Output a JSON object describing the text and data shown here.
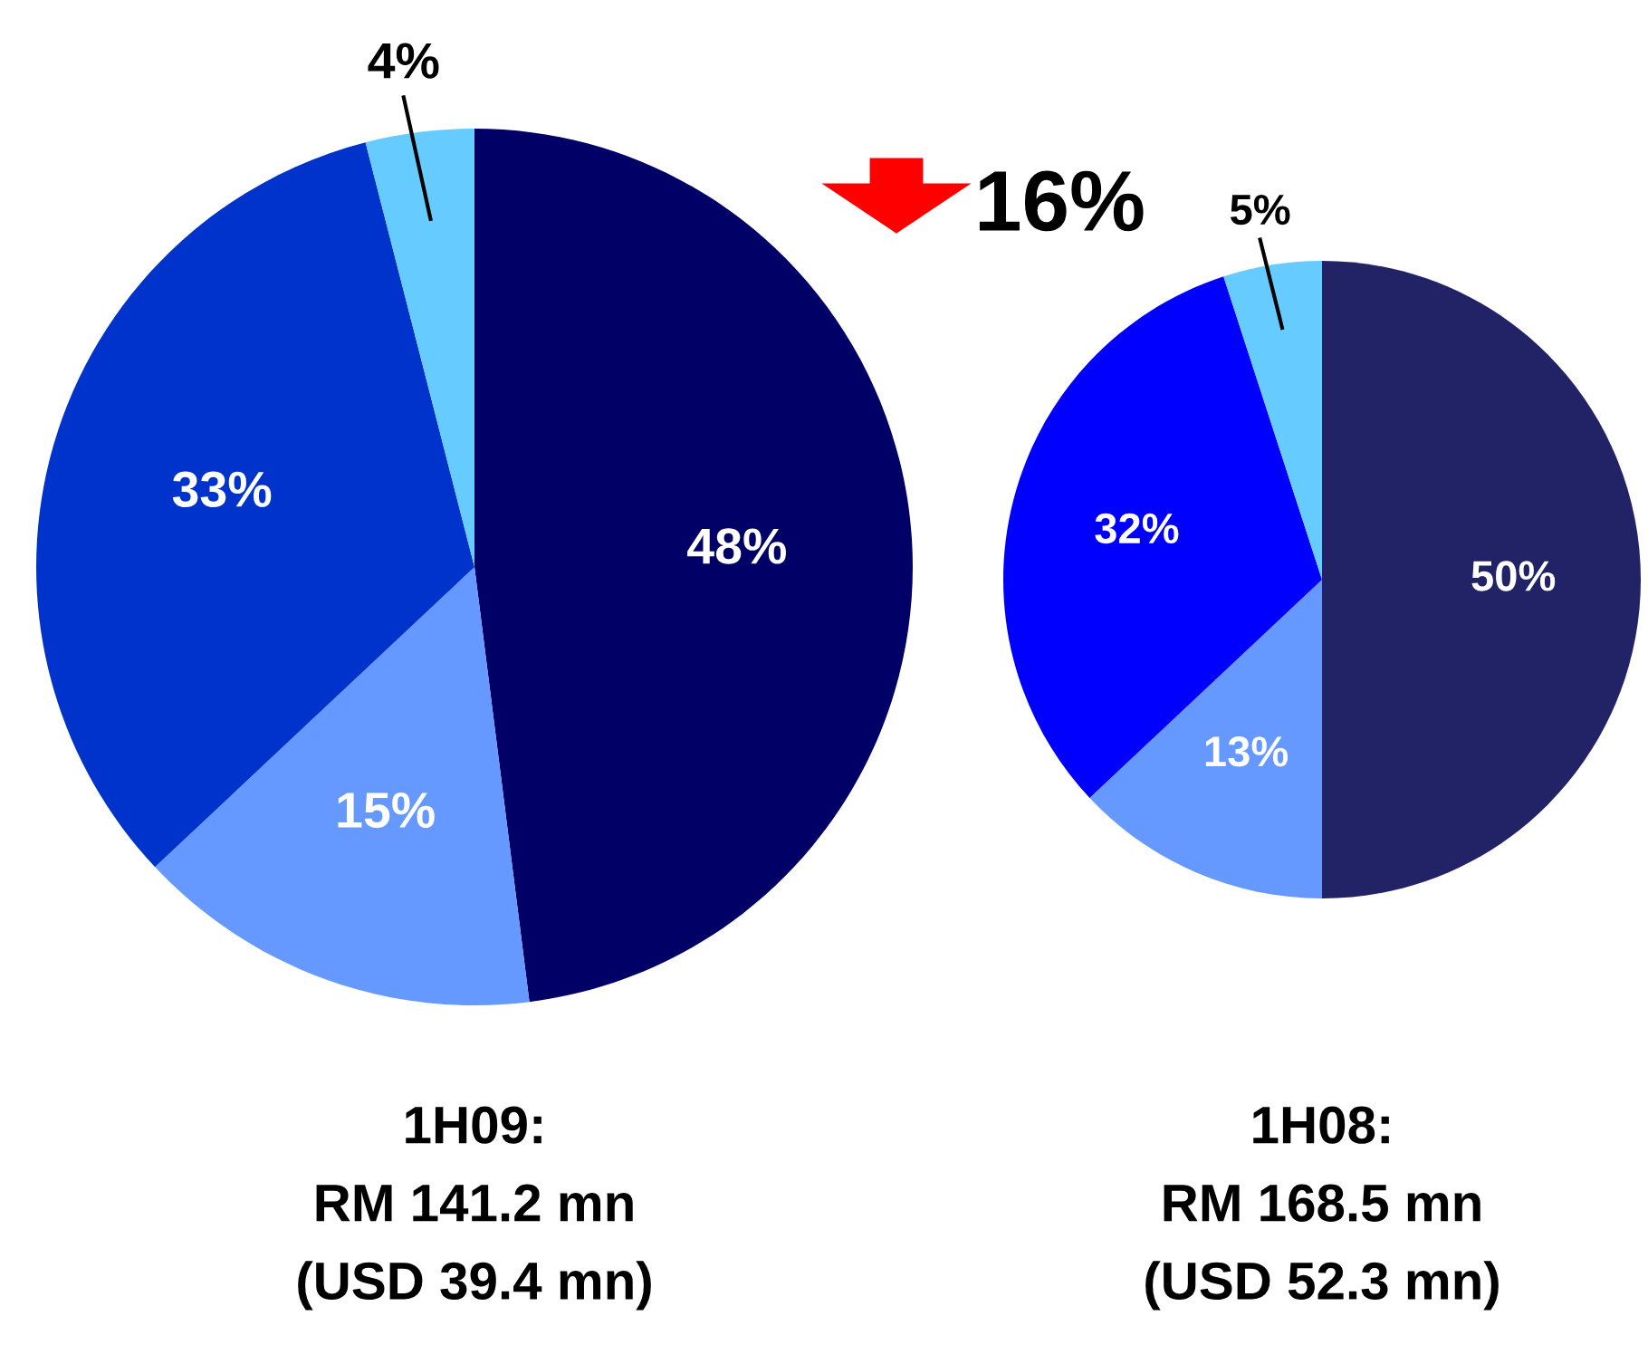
{
  "chart_data": [
    {
      "type": "pie",
      "categories": [
        null,
        null,
        null,
        null
      ],
      "values": [
        48,
        15,
        33,
        4
      ],
      "colors": [
        "#000066",
        "#6699ff",
        "#0033cc",
        "#66ccff"
      ],
      "value_labels": [
        "48%",
        "15%",
        "33%",
        "4%"
      ],
      "xlabel": "1H09:\nRM 141.2 mn\n(USD 39.4 mn)",
      "annotations": [
        "16%"
      ]
    },
    {
      "type": "pie",
      "categories": [
        null,
        null,
        null,
        null
      ],
      "values": [
        50,
        13,
        32,
        5
      ],
      "colors": [
        "#222266",
        "#6699ff",
        "#0000ff",
        "#66ccff"
      ],
      "value_labels": [
        "50%",
        "13%",
        "32%",
        "5%"
      ],
      "xlabel": "1H08:\nRM 168.5 mn\n(USD 52.3 mn)"
    }
  ]
}
